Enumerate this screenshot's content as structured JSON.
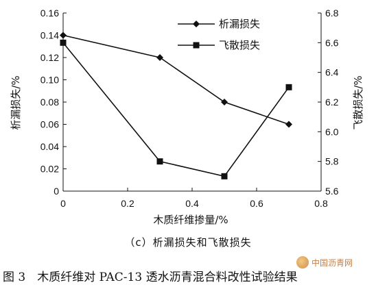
{
  "chart_data": {
    "type": "line",
    "x": [
      0,
      0.3,
      0.5,
      0.7
    ],
    "xlabel": "木质纤维掺量/%",
    "xlim": [
      0,
      0.8
    ],
    "xticks": [
      "0",
      "0.2",
      "0.4",
      "0.6",
      "0.8"
    ],
    "xtick_values": [
      0,
      0.2,
      0.4,
      0.6,
      0.8
    ],
    "ylabel_left": "析漏损失/%",
    "ylim_left": [
      0,
      0.16
    ],
    "yticks_left": [
      "0",
      "0.02",
      "0.04",
      "0.06",
      "0.08",
      "0.10",
      "0.12",
      "0.14",
      "0.16"
    ],
    "ytick_values_left": [
      0,
      0.02,
      0.04,
      0.06,
      0.08,
      0.1,
      0.12,
      0.14,
      0.16
    ],
    "ylabel_right": "飞散损失/%",
    "ylim_right": [
      5.6,
      6.8
    ],
    "yticks_right": [
      "5.6",
      "5.8",
      "6.0",
      "6.2",
      "6.4",
      "6.6",
      "6.8"
    ],
    "ytick_values_right": [
      5.6,
      5.8,
      6.0,
      6.2,
      6.4,
      6.6,
      6.8
    ],
    "series": [
      {
        "name": "析漏损失",
        "axis": "left",
        "marker": "diamond",
        "values": [
          0.14,
          0.12,
          0.08,
          0.06
        ]
      },
      {
        "name": "飞散损失",
        "axis": "right",
        "marker": "square",
        "values": [
          6.6,
          5.8,
          5.7,
          6.3
        ]
      }
    ],
    "legend": "top-center",
    "grid": false
  },
  "subcaption": "（c）析漏损失和飞散损失",
  "caption": "图 3　木质纤维对 PAC-13 透水沥青混合料改性试验结果",
  "watermark": "中国沥青网"
}
